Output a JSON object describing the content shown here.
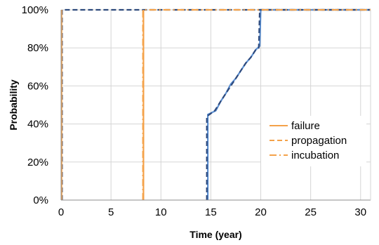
{
  "chart_data": {
    "type": "line",
    "xlabel": "Time (year)",
    "ylabel": "Probability",
    "xlim": [
      0,
      31
    ],
    "ylim": [
      0,
      1
    ],
    "xticks": [
      0,
      5,
      10,
      15,
      20,
      25,
      30
    ],
    "xtick_labels": [
      "0",
      "5",
      "10",
      "15",
      "20",
      "25",
      "30"
    ],
    "yticks": [
      0,
      0.2,
      0.4,
      0.6,
      0.8,
      1.0
    ],
    "ytick_labels": [
      "0%",
      "20%",
      "40%",
      "60%",
      "80%",
      "100%"
    ],
    "grid": true,
    "legend_position": "right",
    "series": [
      {
        "name": "failure",
        "color": "#5b8fd1",
        "style": "solid",
        "legend_color": "#f4a24a",
        "legend_style": "solid",
        "x": [
          14.7,
          14.7,
          15.5,
          16.0,
          16.5,
          17.0,
          17.5,
          18.0,
          18.5,
          19.0,
          19.5,
          19.9,
          20.0,
          31
        ],
        "y": [
          0.0,
          0.45,
          0.47,
          0.52,
          0.56,
          0.61,
          0.64,
          0.68,
          0.72,
          0.75,
          0.79,
          0.81,
          1.0,
          1.0
        ]
      },
      {
        "name": "propagation",
        "color": "#2e4a7d",
        "style": "dashed",
        "legend_color": "#f4a24a",
        "legend_style": "dashed",
        "x": [
          14.6,
          14.6,
          15.4,
          16.0,
          16.5,
          17.0,
          17.5,
          18.0,
          18.5,
          19.0,
          19.5,
          19.8,
          19.9,
          31
        ],
        "y": [
          0.0,
          0.44,
          0.47,
          0.52,
          0.56,
          0.6,
          0.64,
          0.68,
          0.72,
          0.75,
          0.79,
          0.8,
          1.0,
          1.0
        ]
      },
      {
        "name": "incubation",
        "color": "#f4a24a",
        "style": "dashdot",
        "legend_color": "#f4a24a",
        "legend_style": "dashdot",
        "x": [
          8.2,
          8.2,
          31
        ],
        "y": [
          0.0,
          1.0,
          1.0
        ]
      }
    ],
    "extra_lines": [
      {
        "color": "#2e4a7d",
        "style": "dashed",
        "x": [
          0.1,
          0.1,
          31
        ],
        "y": [
          0.0,
          1.0,
          1.0
        ]
      },
      {
        "color": "#f4a24a",
        "style": "solid",
        "x": [
          0.05,
          0.05
        ],
        "y": [
          0.0,
          1.0
        ]
      },
      {
        "color": "#f4a24a",
        "style": "solid",
        "x": [
          8.25,
          8.25
        ],
        "y": [
          0.0,
          1.0
        ]
      }
    ]
  }
}
